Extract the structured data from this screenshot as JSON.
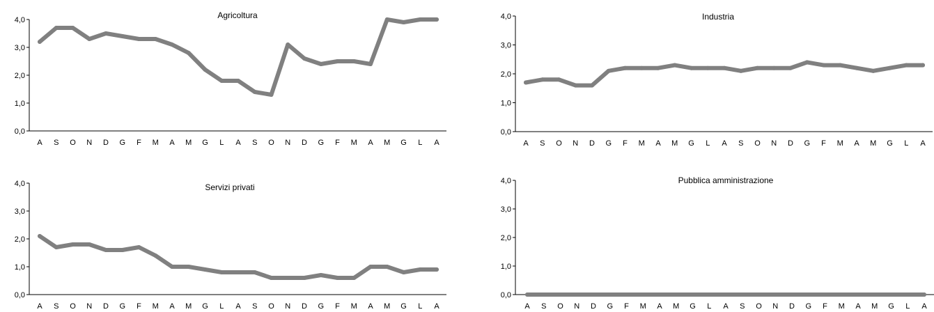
{
  "colors": {
    "line": "#808080",
    "axis": "#000000",
    "background": "#ffffff"
  },
  "chart_data": [
    {
      "type": "line",
      "title": "Agricoltura",
      "categories": [
        "A",
        "S",
        "O",
        "N",
        "D",
        "G",
        "F",
        "M",
        "A",
        "M",
        "G",
        "L",
        "A",
        "S",
        "O",
        "N",
        "D",
        "G",
        "F",
        "M",
        "A",
        "M",
        "G",
        "L",
        "A"
      ],
      "values": [
        3.2,
        3.7,
        3.7,
        3.3,
        3.5,
        3.4,
        3.3,
        3.3,
        3.1,
        2.8,
        2.2,
        1.8,
        1.8,
        1.4,
        1.3,
        3.1,
        2.6,
        2.4,
        2.5,
        2.5,
        2.4,
        4.0,
        3.9,
        4.0,
        4.0
      ],
      "ylim": [
        0,
        4
      ],
      "yticks": [
        "0,0",
        "1,0",
        "2,0",
        "3,0",
        "4,0"
      ],
      "xlabel": "",
      "ylabel": "",
      "grid": false,
      "legend": "none"
    },
    {
      "type": "line",
      "title": "Industria",
      "categories": [
        "A",
        "S",
        "O",
        "N",
        "D",
        "G",
        "F",
        "M",
        "A",
        "M",
        "G",
        "L",
        "A",
        "S",
        "O",
        "N",
        "D",
        "G",
        "F",
        "M",
        "A",
        "M",
        "G",
        "L",
        "A"
      ],
      "values": [
        1.7,
        1.8,
        1.8,
        1.6,
        1.6,
        2.1,
        2.2,
        2.2,
        2.2,
        2.3,
        2.2,
        2.2,
        2.2,
        2.1,
        2.2,
        2.2,
        2.2,
        2.4,
        2.3,
        2.3,
        2.2,
        2.1,
        2.2,
        2.3,
        2.3
      ],
      "ylim": [
        0,
        4
      ],
      "yticks": [
        "0,0",
        "1,0",
        "2,0",
        "3,0",
        "4,0"
      ],
      "xlabel": "",
      "ylabel": "",
      "grid": false,
      "legend": "none"
    },
    {
      "type": "line",
      "title": "Servizi privati",
      "categories": [
        "A",
        "S",
        "O",
        "N",
        "D",
        "G",
        "F",
        "M",
        "A",
        "M",
        "G",
        "L",
        "A",
        "S",
        "O",
        "N",
        "D",
        "G",
        "F",
        "M",
        "A",
        "M",
        "G",
        "L",
        "A"
      ],
      "values": [
        2.1,
        1.7,
        1.8,
        1.8,
        1.6,
        1.6,
        1.7,
        1.4,
        1.0,
        1.0,
        0.9,
        0.8,
        0.8,
        0.8,
        0.6,
        0.6,
        0.6,
        0.7,
        0.6,
        0.6,
        1.0,
        1.0,
        0.8,
        0.9,
        0.9
      ],
      "ylim": [
        0,
        4
      ],
      "yticks": [
        "0,0",
        "1,0",
        "2,0",
        "3,0",
        "4,0"
      ],
      "xlabel": "",
      "ylabel": "",
      "grid": false,
      "legend": "none"
    },
    {
      "type": "line",
      "title": "Pubblica amministrazione",
      "categories": [
        "A",
        "S",
        "O",
        "N",
        "D",
        "G",
        "F",
        "M",
        "A",
        "M",
        "G",
        "L",
        "A",
        "S",
        "O",
        "N",
        "D",
        "G",
        "F",
        "M",
        "A",
        "M",
        "G",
        "L",
        "A"
      ],
      "values": [
        0,
        0,
        0,
        0,
        0,
        0,
        0,
        0,
        0,
        0,
        0,
        0,
        0,
        0,
        0,
        0,
        0,
        0,
        0,
        0,
        0,
        0,
        0,
        0,
        0
      ],
      "ylim": [
        0,
        4
      ],
      "yticks": [
        "0,0",
        "1,0",
        "2,0",
        "3,0",
        "4,0"
      ],
      "xlabel": "",
      "ylabel": "",
      "grid": false,
      "legend": "none"
    }
  ]
}
